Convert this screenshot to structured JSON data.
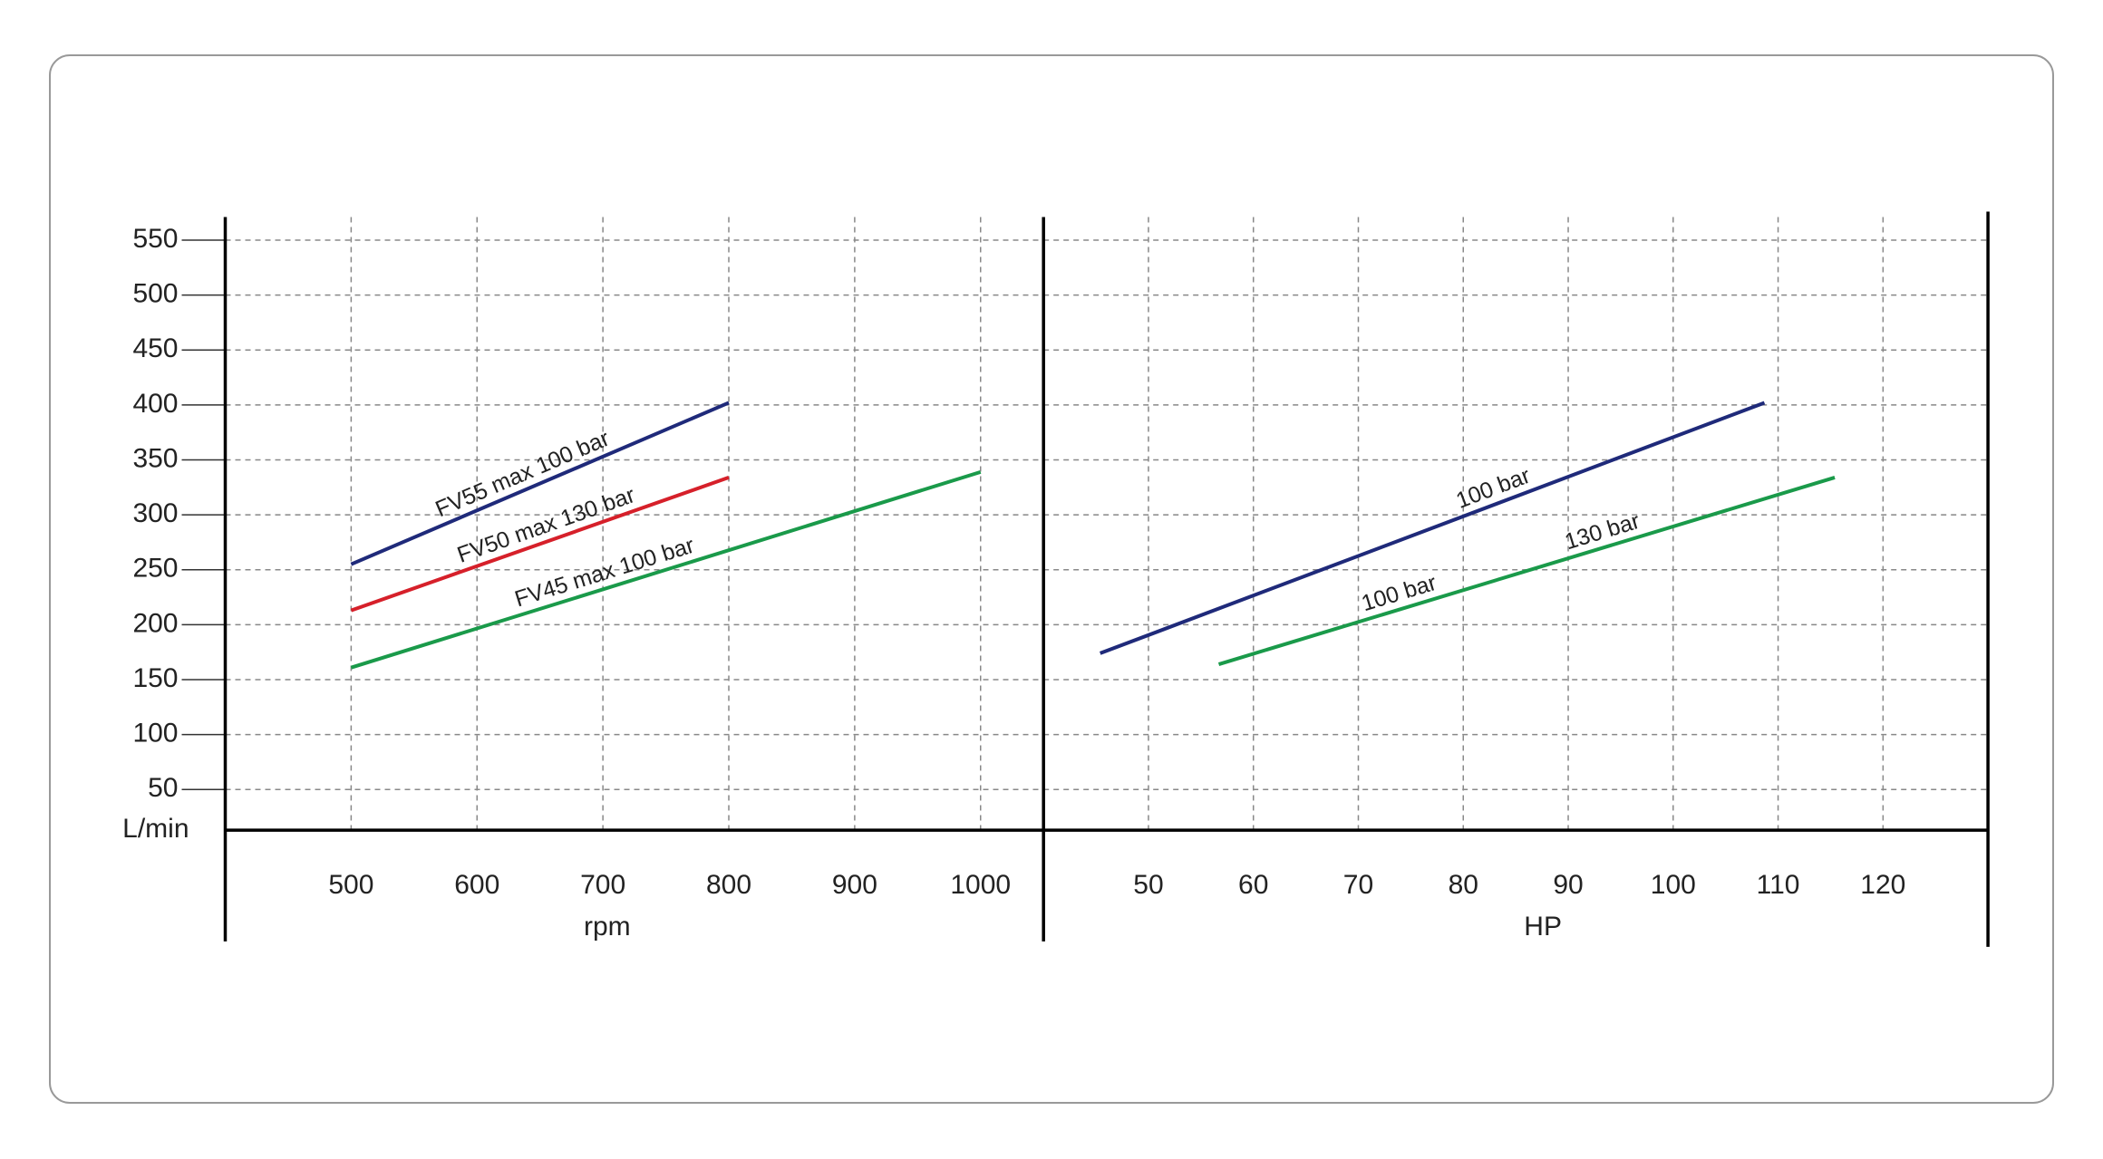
{
  "chart_data": [
    {
      "type": "line",
      "x_label": "rpm",
      "y_label": "L/min",
      "xlim": [
        400,
        1050
      ],
      "xticks": [
        500,
        600,
        700,
        800,
        900,
        1000
      ],
      "ylim": [
        13,
        571
      ],
      "yticks": [
        50,
        100,
        150,
        200,
        250,
        300,
        350,
        400,
        450,
        500,
        550
      ],
      "grid": true,
      "series": [
        {
          "labels": [
            "FV55 max 100 bar"
          ],
          "color": "#1f2a7a",
          "x": [
            500,
            800
          ],
          "values": [
            255,
            402
          ]
        },
        {
          "labels": [
            "FV50 max 130 bar"
          ],
          "color": "#d6202a",
          "x": [
            500,
            800
          ],
          "values": [
            213,
            334
          ]
        },
        {
          "labels": [
            "FV45 max 100 bar"
          ],
          "color": "#1a9a4a",
          "x": [
            500,
            1000
          ],
          "values": [
            161,
            339
          ]
        }
      ]
    },
    {
      "type": "line",
      "x_label": "HP",
      "xlim": [
        40,
        130
      ],
      "xticks": [
        50,
        60,
        70,
        80,
        90,
        100,
        110,
        120
      ],
      "ylim": [
        13,
        571
      ],
      "yticks": [
        50,
        100,
        150,
        200,
        250,
        300,
        350,
        400,
        450,
        500,
        550
      ],
      "grid": true,
      "series": [
        {
          "labels": [
            "100 bar"
          ],
          "color": "#1f2a7a",
          "x": [
            45.4,
            108.7
          ],
          "values": [
            174,
            402
          ]
        },
        {
          "labels": [
            "100 bar",
            "130 bar"
          ],
          "color": "#1a9a4a",
          "x": [
            56.7,
            115.4
          ],
          "values": [
            164,
            334
          ]
        }
      ]
    }
  ]
}
